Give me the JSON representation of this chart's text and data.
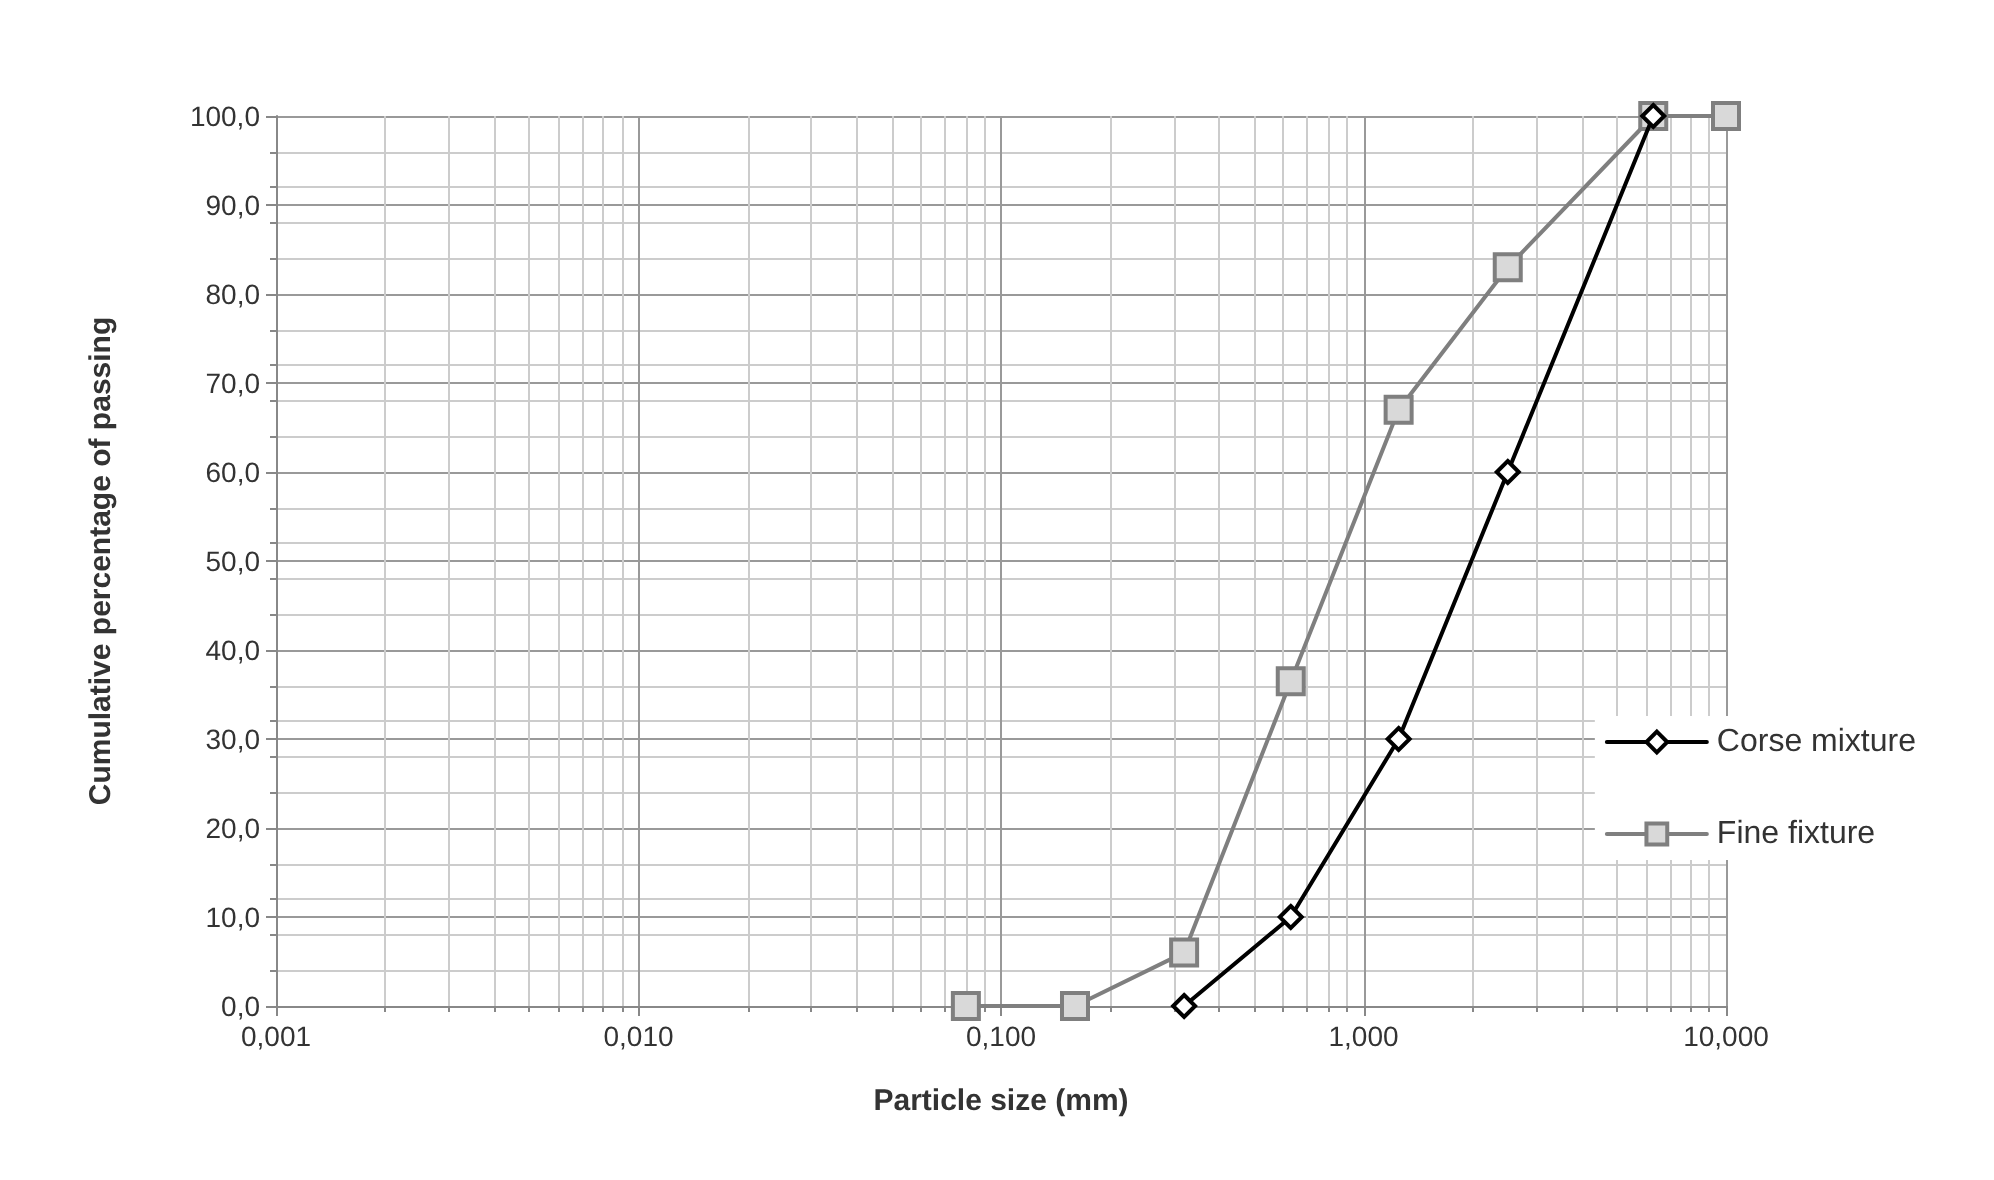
{
  "chart_data": {
    "type": "line",
    "xlabel": "Particle size (mm)",
    "ylabel": "Cumulative percentage of passing",
    "log": "x",
    "grid": true,
    "legend": "right",
    "line_style": "solid",
    "xlim": [
      0.001,
      10
    ],
    "xticks": [
      {
        "value": 0.001,
        "label": "0,001"
      },
      {
        "value": 0.01,
        "label": "0,010"
      },
      {
        "value": 0.1,
        "label": "0,100"
      },
      {
        "value": 1,
        "label": "1,000"
      },
      {
        "value": 10,
        "label": "10,000"
      }
    ],
    "ylim": [
      0,
      100
    ],
    "yticks": [
      {
        "value": 0,
        "label": "0,0"
      },
      {
        "value": 10,
        "label": "10,0"
      },
      {
        "value": 20,
        "label": "20,0"
      },
      {
        "value": 30,
        "label": "30,0"
      },
      {
        "value": 40,
        "label": "40,0"
      },
      {
        "value": 50,
        "label": "50,0"
      },
      {
        "value": 60,
        "label": "60,0"
      },
      {
        "value": 70,
        "label": "70,0"
      },
      {
        "value": 80,
        "label": "80,0"
      },
      {
        "value": 90,
        "label": "90,0"
      },
      {
        "value": 100,
        "label": "100,0"
      }
    ],
    "series": [
      {
        "name": "Corse mixture",
        "color": "#000000",
        "marker": "diamond",
        "x": [
          0.32,
          0.63,
          1.25,
          2.5,
          6.3
        ],
        "values": [
          0,
          10,
          30,
          60,
          100
        ]
      },
      {
        "name": "Fine fixture",
        "color": "#7f7f7f",
        "marker": "square",
        "x": [
          0.08,
          0.16,
          0.32,
          0.63,
          1.25,
          2.5,
          6.3,
          10
        ],
        "values": [
          0,
          0,
          6,
          36.5,
          67,
          83,
          100,
          100
        ]
      }
    ]
  }
}
